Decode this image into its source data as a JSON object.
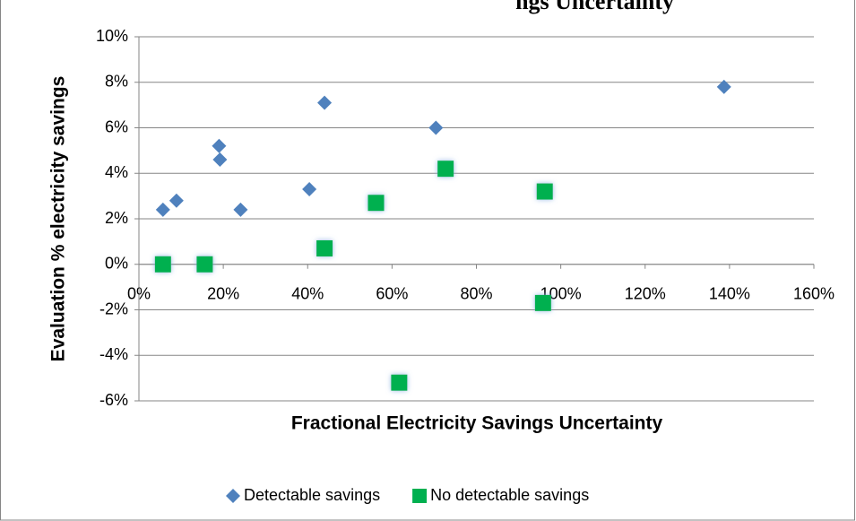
{
  "chart_data": {
    "type": "scatter",
    "title": "ngs Uncertainty",
    "x_label": "Fractional Electricity Savings Uncertainty",
    "y_label": "Evaluation % electricity savings",
    "xlim": [
      0,
      160
    ],
    "ylim": [
      -6,
      10
    ],
    "xticks": [
      {
        "value": 0,
        "label": "0%"
      },
      {
        "value": 20,
        "label": "20%"
      },
      {
        "value": 40,
        "label": "40%"
      },
      {
        "value": 60,
        "label": "60%"
      },
      {
        "value": 80,
        "label": "80%"
      },
      {
        "value": 100,
        "label": "100%"
      },
      {
        "value": 120,
        "label": "120%"
      },
      {
        "value": 140,
        "label": "140%"
      },
      {
        "value": 160,
        "label": "160%"
      }
    ],
    "yticks": [
      {
        "value": -6,
        "label": "-6%"
      },
      {
        "value": -4,
        "label": "-4%"
      },
      {
        "value": -2,
        "label": "-2%"
      },
      {
        "value": 0,
        "label": "0%"
      },
      {
        "value": 2,
        "label": "2%"
      },
      {
        "value": 4,
        "label": "4%"
      },
      {
        "value": 6,
        "label": "6%"
      },
      {
        "value": 8,
        "label": "8%"
      },
      {
        "value": 10,
        "label": "10%"
      }
    ],
    "grid": true,
    "legend": "bottom",
    "series": [
      {
        "name": "Detectable savings",
        "color": "#4f81bd",
        "marker": "diamond",
        "x": [
          5.7,
          8.9,
          19.0,
          19.2,
          24.1,
          44.0,
          40.4,
          70.4,
          138.7
        ],
        "values": [
          2.4,
          2.8,
          5.2,
          4.6,
          2.4,
          7.1,
          3.3,
          6.0,
          7.8
        ]
      },
      {
        "name": "No detectable savings",
        "color": "#00b050",
        "marker": "square",
        "x": [
          5.7,
          15.6,
          44.0,
          56.2,
          72.7,
          96.2,
          95.8,
          61.7
        ],
        "values": [
          0,
          0,
          0.7,
          2.7,
          4.2,
          3.2,
          -1.7,
          -5.2
        ]
      }
    ]
  }
}
